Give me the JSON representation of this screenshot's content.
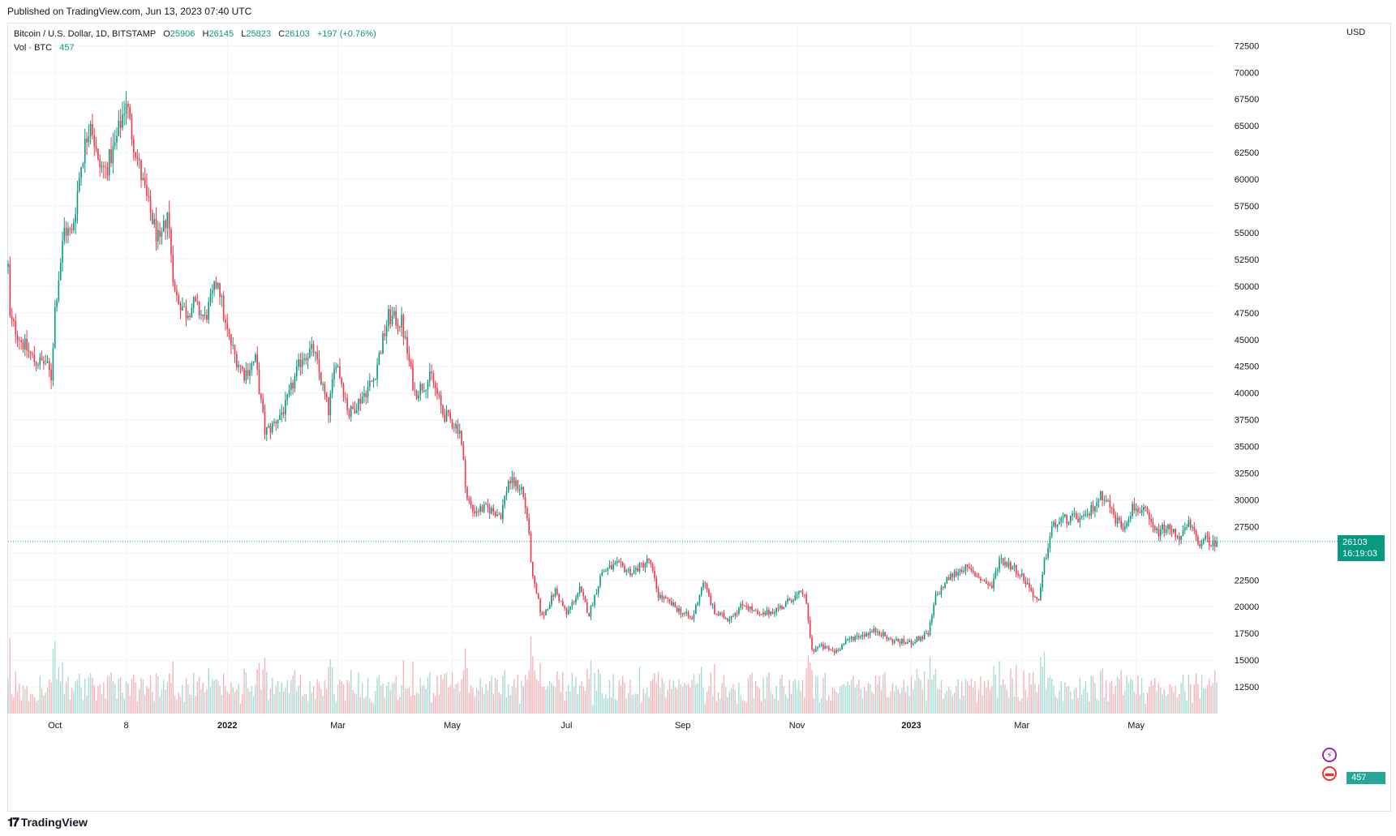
{
  "header": {
    "published": "Published on TradingView.com, Jun 13, 2023 07:40 UTC"
  },
  "legend": {
    "symbol": "Bitcoin / U.S. Dollar, 1D, BITSTAMP",
    "open_label": "O",
    "open": "25906",
    "high_label": "H",
    "high": "26145",
    "low_label": "L",
    "low": "25823",
    "close_label": "C",
    "close": "26103",
    "change": "+197 (+0.76%)",
    "volume_label": "Vol · BTC",
    "volume": "457"
  },
  "price_axis": {
    "currency": "USD"
  },
  "last_price": {
    "value": "26103",
    "countdown": "16:19:03"
  },
  "volume_tag": "457",
  "footer": {
    "brand": "TradingView"
  },
  "colors": {
    "up": "#089981",
    "down": "#f23645",
    "up_vol": "#a8dcd4",
    "down_vol": "#f7b4b8",
    "grid": "#f0f3fa"
  },
  "chart_data": {
    "type": "candlestick",
    "title": "Bitcoin / U.S. Dollar, 1D, BITSTAMP",
    "ylabel": "USD",
    "ylim": [
      10000,
      74500
    ],
    "y_ticks": [
      12500,
      15000,
      17500,
      20000,
      22500,
      25000,
      27500,
      30000,
      32500,
      35000,
      37500,
      40000,
      42500,
      45000,
      47500,
      50000,
      52500,
      55000,
      57500,
      60000,
      62500,
      65000,
      67500,
      70000,
      72500
    ],
    "y_tick_labels_shown": [
      12500,
      15000,
      17500,
      20000,
      22500,
      27500,
      30000,
      32500,
      35000,
      37500,
      40000,
      42500,
      45000,
      47500,
      50000,
      52500,
      55000,
      57500,
      60000,
      62500,
      65000,
      67500,
      70000,
      72500
    ],
    "x_range": [
      "2021-09-06",
      "2023-06-13"
    ],
    "x_ticks": [
      {
        "date": "2021-10-01",
        "label": "Oct",
        "bold": false
      },
      {
        "date": "2021-11-08",
        "label": "8",
        "bold": false
      },
      {
        "date": "2022-01-01",
        "label": "2022",
        "bold": true
      },
      {
        "date": "2022-03-01",
        "label": "Mar",
        "bold": false
      },
      {
        "date": "2022-05-01",
        "label": "May",
        "bold": false
      },
      {
        "date": "2022-07-01",
        "label": "Jul",
        "bold": false
      },
      {
        "date": "2022-09-01",
        "label": "Sep",
        "bold": false
      },
      {
        "date": "2022-11-01",
        "label": "Nov",
        "bold": false
      },
      {
        "date": "2023-01-01",
        "label": "2023",
        "bold": true
      },
      {
        "date": "2023-03-01",
        "label": "Mar",
        "bold": false
      },
      {
        "date": "2023-05-01",
        "label": "May",
        "bold": false
      }
    ],
    "close_path": [
      [
        "2021-09-06",
        51800
      ],
      [
        "2021-09-07",
        46900
      ],
      [
        "2021-09-13",
        44900
      ],
      [
        "2021-09-20",
        43000
      ],
      [
        "2021-09-26",
        42800
      ],
      [
        "2021-09-29",
        41500
      ],
      [
        "2021-10-01",
        47900
      ],
      [
        "2021-10-06",
        55300
      ],
      [
        "2021-10-10",
        54900
      ],
      [
        "2021-10-15",
        61500
      ],
      [
        "2021-10-20",
        65800
      ],
      [
        "2021-10-24",
        61300
      ],
      [
        "2021-10-28",
        60900
      ],
      [
        "2021-11-02",
        63100
      ],
      [
        "2021-11-08",
        67500
      ],
      [
        "2021-11-10",
        65100
      ],
      [
        "2021-11-16",
        60300
      ],
      [
        "2021-11-19",
        58100
      ],
      [
        "2021-11-26",
        53700
      ],
      [
        "2021-11-30",
        57000
      ],
      [
        "2021-12-04",
        49300
      ],
      [
        "2021-12-10",
        47500
      ],
      [
        "2021-12-14",
        48300
      ],
      [
        "2021-12-20",
        46900
      ],
      [
        "2021-12-27",
        50700
      ],
      [
        "2021-12-31",
        46200
      ],
      [
        "2022-01-05",
        43500
      ],
      [
        "2022-01-10",
        41800
      ],
      [
        "2022-01-16",
        43100
      ],
      [
        "2022-01-21",
        36400
      ],
      [
        "2022-01-24",
        36700
      ],
      [
        "2022-02-01",
        38700
      ],
      [
        "2022-02-10",
        43500
      ],
      [
        "2022-02-16",
        44000
      ],
      [
        "2022-02-24",
        38300
      ],
      [
        "2022-02-28",
        43200
      ],
      [
        "2022-03-07",
        38000
      ],
      [
        "2022-03-14",
        39700
      ],
      [
        "2022-03-20",
        41300
      ],
      [
        "2022-03-28",
        47100
      ],
      [
        "2022-04-04",
        46600
      ],
      [
        "2022-04-11",
        40000
      ],
      [
        "2022-04-20",
        41500
      ],
      [
        "2022-04-26",
        38100
      ],
      [
        "2022-05-05",
        36600
      ],
      [
        "2022-05-09",
        30100
      ],
      [
        "2022-05-12",
        29000
      ],
      [
        "2022-05-20",
        29200
      ],
      [
        "2022-05-27",
        28600
      ],
      [
        "2022-05-31",
        31800
      ],
      [
        "2022-06-07",
        31100
      ],
      [
        "2022-06-10",
        28400
      ],
      [
        "2022-06-13",
        22500
      ],
      [
        "2022-06-18",
        19000
      ],
      [
        "2022-06-25",
        21500
      ],
      [
        "2022-07-01",
        19300
      ],
      [
        "2022-07-08",
        21600
      ],
      [
        "2022-07-13",
        19300
      ],
      [
        "2022-07-20",
        23300
      ],
      [
        "2022-07-28",
        23900
      ],
      [
        "2022-08-05",
        23200
      ],
      [
        "2022-08-14",
        24400
      ],
      [
        "2022-08-19",
        21100
      ],
      [
        "2022-08-26",
        20200
      ],
      [
        "2022-09-06",
        18800
      ],
      [
        "2022-09-12",
        22400
      ],
      [
        "2022-09-18",
        19400
      ],
      [
        "2022-09-25",
        18900
      ],
      [
        "2022-10-04",
        20300
      ],
      [
        "2022-10-12",
        19100
      ],
      [
        "2022-10-25",
        20100
      ],
      [
        "2022-10-29",
        20800
      ],
      [
        "2022-11-05",
        21300
      ],
      [
        "2022-11-09",
        15900
      ],
      [
        "2022-11-13",
        16300
      ],
      [
        "2022-11-21",
        15800
      ],
      [
        "2022-11-30",
        17100
      ],
      [
        "2022-12-14",
        17800
      ],
      [
        "2022-12-20",
        16900
      ],
      [
        "2022-12-31",
        16600
      ],
      [
        "2023-01-10",
        17400
      ],
      [
        "2023-01-14",
        20900
      ],
      [
        "2023-01-21",
        22700
      ],
      [
        "2023-01-29",
        23700
      ],
      [
        "2023-02-05",
        22900
      ],
      [
        "2023-02-13",
        21800
      ],
      [
        "2023-02-17",
        24500
      ],
      [
        "2023-02-26",
        23500
      ],
      [
        "2023-03-03",
        22400
      ],
      [
        "2023-03-10",
        20300
      ],
      [
        "2023-03-13",
        24100
      ],
      [
        "2023-03-17",
        27400
      ],
      [
        "2023-03-22",
        28100
      ],
      [
        "2023-03-29",
        28300
      ],
      [
        "2023-04-04",
        28200
      ],
      [
        "2023-04-11",
        30200
      ],
      [
        "2023-04-14",
        30500
      ],
      [
        "2023-04-20",
        28200
      ],
      [
        "2023-04-24",
        27500
      ],
      [
        "2023-04-29",
        29300
      ],
      [
        "2023-05-06",
        28800
      ],
      [
        "2023-05-11",
        26900
      ],
      [
        "2023-05-17",
        27400
      ],
      [
        "2023-05-25",
        26500
      ],
      [
        "2023-05-29",
        27700
      ],
      [
        "2023-06-05",
        25700
      ],
      [
        "2023-06-08",
        26500
      ],
      [
        "2023-06-10",
        25800
      ],
      [
        "2023-06-13",
        26103
      ]
    ]
  }
}
